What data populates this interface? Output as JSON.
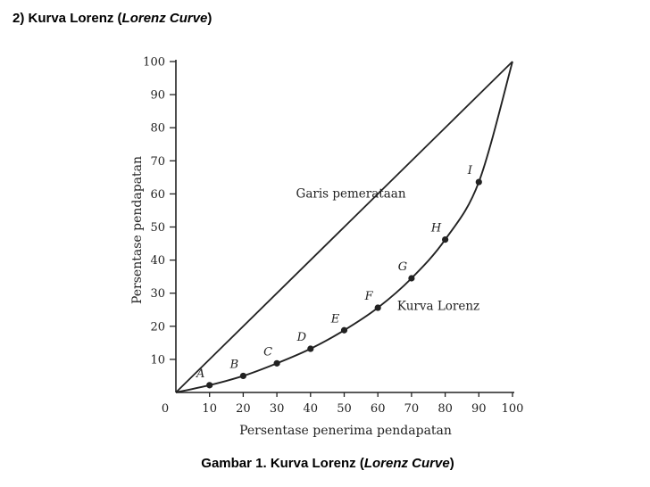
{
  "heading": {
    "prefix": "2) Kurva Lorenz (",
    "italic": "Lorenz Curve",
    "suffix": ")"
  },
  "caption": {
    "prefix": "Gambar 1. Kurva Lorenz (",
    "italic": "Lorenz Curve",
    "suffix": ")"
  },
  "colors": {
    "ink": "#222222",
    "background": "#ffffff"
  },
  "chart_data": {
    "type": "line",
    "xlabel": "Persentase penerima pendapatan",
    "ylabel": "Persentase pendapatan",
    "xlim": [
      0,
      100
    ],
    "ylim": [
      0,
      100
    ],
    "x_ticks": [
      0,
      10,
      20,
      30,
      40,
      50,
      60,
      70,
      80,
      90,
      100
    ],
    "y_ticks": [
      10,
      20,
      30,
      40,
      50,
      60,
      70,
      80,
      90,
      100
    ],
    "grid": false,
    "series": [
      {
        "name": "Garis pemerataan",
        "points": [
          [
            0,
            0
          ],
          [
            100,
            100
          ]
        ]
      },
      {
        "name": "Kurva Lorenz",
        "points": [
          [
            0,
            0
          ],
          [
            10,
            2.2
          ],
          [
            20,
            5
          ],
          [
            30,
            8.8
          ],
          [
            40,
            13.2
          ],
          [
            50,
            18.8
          ],
          [
            60,
            25.6
          ],
          [
            70,
            34.5
          ],
          [
            80,
            46.2
          ],
          [
            90,
            63.6
          ],
          [
            100,
            100
          ]
        ],
        "labeled_points": [
          {
            "label": "A",
            "x": 10,
            "y": 2.2
          },
          {
            "label": "B",
            "x": 20,
            "y": 5
          },
          {
            "label": "C",
            "x": 30,
            "y": 8.8
          },
          {
            "label": "D",
            "x": 40,
            "y": 13.2
          },
          {
            "label": "E",
            "x": 50,
            "y": 18.8
          },
          {
            "label": "F",
            "x": 60,
            "y": 25.6
          },
          {
            "label": "G",
            "x": 70,
            "y": 34.5
          },
          {
            "label": "H",
            "x": 80,
            "y": 46.2
          },
          {
            "label": "I",
            "x": 90,
            "y": 63.6
          }
        ]
      }
    ],
    "annotations": [
      {
        "text": "Garis pemerataan",
        "x": 52,
        "y": 60
      },
      {
        "text": "Kurva Lorenz",
        "x": 78,
        "y": 26
      }
    ]
  }
}
